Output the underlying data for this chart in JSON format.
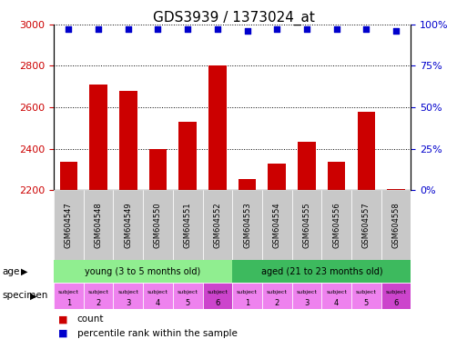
{
  "title": "GDS3939 / 1373024_at",
  "samples": [
    "GSM604547",
    "GSM604548",
    "GSM604549",
    "GSM604550",
    "GSM604551",
    "GSM604552",
    "GSM604553",
    "GSM604554",
    "GSM604555",
    "GSM604556",
    "GSM604557",
    "GSM604558"
  ],
  "counts": [
    2335,
    2710,
    2680,
    2400,
    2530,
    2800,
    2255,
    2330,
    2435,
    2335,
    2580,
    2205
  ],
  "percentile_ranks": [
    97,
    97,
    97,
    97,
    97,
    97,
    96,
    97,
    97,
    97,
    97,
    96
  ],
  "bar_color": "#cc0000",
  "dot_color": "#0000cc",
  "ylim_left": [
    2200,
    3000
  ],
  "ylim_right": [
    0,
    100
  ],
  "yticks_left": [
    2200,
    2400,
    2600,
    2800,
    3000
  ],
  "yticks_right": [
    0,
    25,
    50,
    75,
    100
  ],
  "age_groups": [
    {
      "label": "young (3 to 5 months old)",
      "start": 0,
      "end": 6,
      "color": "#90ee90"
    },
    {
      "label": "aged (21 to 23 months old)",
      "start": 6,
      "end": 12,
      "color": "#3dba5e"
    }
  ],
  "specimen_colors": [
    "#ee82ee",
    "#ee82ee",
    "#ee82ee",
    "#ee82ee",
    "#ee82ee",
    "#cc44cc",
    "#ee82ee",
    "#ee82ee",
    "#ee82ee",
    "#ee82ee",
    "#ee82ee",
    "#cc44cc"
  ],
  "specimen_numbers": [
    "1",
    "2",
    "3",
    "4",
    "5",
    "6",
    "1",
    "2",
    "3",
    "4",
    "5",
    "6"
  ],
  "age_label": "age",
  "specimen_label": "specimen",
  "legend_count_label": "count",
  "legend_pct_label": "percentile rank within the sample",
  "bg_color": "#ffffff",
  "tick_label_color_left": "#cc0000",
  "tick_label_color_right": "#0000cc",
  "bar_width": 0.6,
  "xlab_bg_color": "#c8c8c8"
}
